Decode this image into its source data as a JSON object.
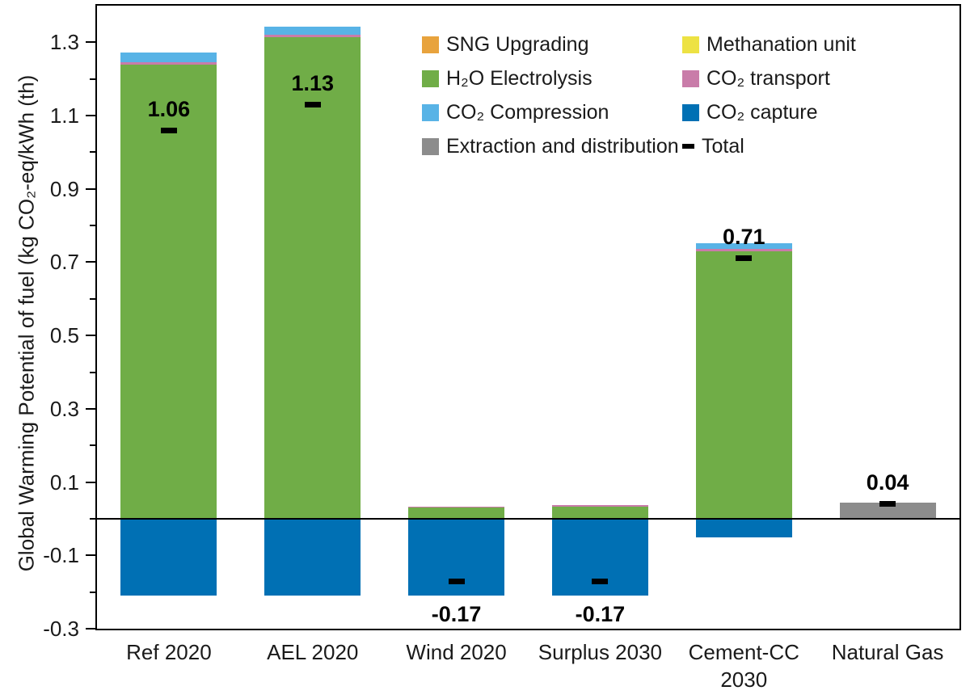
{
  "chart_data": {
    "type": "bar",
    "stacked": true,
    "title": "",
    "xlabel": "",
    "ylabel": "Global Warming Potential of fuel (kg CO₂-eq/kWh (th)",
    "ylim": [
      -0.3,
      1.4
    ],
    "grid": false,
    "axis_color": "#000000",
    "yticks_major": [
      "1.3",
      "1.1",
      "0.9",
      "0.7",
      "0.5",
      "0.3",
      "0.1",
      "-0.1",
      "-0.3"
    ],
    "yticks_minor": [
      1.2,
      1.0,
      0.8,
      0.6,
      0.4,
      0.2,
      0.0,
      -0.2
    ],
    "categories": [
      "Ref 2020",
      "AEL 2020",
      "Wind 2020",
      "Surplus 2030",
      "Cement-CC 2030",
      "Natural Gas"
    ],
    "xlabels_display": [
      "Ref 2020",
      "AEL 2020",
      "Wind 2020",
      "Surplus 2030",
      "Cement-CC\n2030",
      "Natural Gas"
    ],
    "series": [
      {
        "name": "Extraction and distribution",
        "color": "#8C8C8C",
        "values": [
          0,
          0,
          0,
          0,
          0,
          0.044
        ]
      },
      {
        "name": "H₂O Electrolysis",
        "color": "#70AD47",
        "values": [
          1.24,
          1.315,
          0.03,
          0.033,
          0.73,
          0
        ]
      },
      {
        "name": "CO₂ transport",
        "color": "#C97CA9",
        "values": [
          0.006,
          0.006,
          0.004,
          0.004,
          0.006,
          0
        ]
      },
      {
        "name": "Methanation unit",
        "color": "#EDE243",
        "values": [
          0,
          0,
          0,
          0,
          0,
          0
        ]
      },
      {
        "name": "SNG Upgrading",
        "color": "#E8A33D",
        "values": [
          0,
          0,
          0,
          0,
          0,
          0
        ]
      },
      {
        "name": "CO₂  Compression",
        "color": "#58B3E6",
        "values": [
          0.027,
          0.022,
          0,
          0,
          0.016,
          0
        ]
      },
      {
        "name": "CO₂ capture",
        "color": "#0070B4",
        "values": [
          -0.21,
          -0.21,
          -0.21,
          -0.21,
          -0.05,
          0
        ]
      }
    ],
    "totals": {
      "name": "Total",
      "color": "#000000",
      "values": [
        1.06,
        1.13,
        -0.17,
        -0.17,
        0.71,
        0.04
      ],
      "labels": [
        "1.06",
        "1.13",
        "-0.17",
        "-0.17",
        "0.71",
        "0.04"
      ]
    },
    "legend": {
      "position": "top-center-inside",
      "columns": [
        [
          {
            "label": "SNG Upgrading",
            "color": "#E8A33D",
            "marker": "square"
          },
          {
            "label": "H₂O Electrolysis",
            "color": "#70AD47",
            "marker": "square"
          },
          {
            "label": "CO₂  Compression",
            "color": "#58B3E6",
            "marker": "square"
          },
          {
            "label": "Extraction and distribution",
            "color": "#8C8C8C",
            "marker": "square"
          }
        ],
        [
          {
            "label": "Methanation unit",
            "color": "#EDE243",
            "marker": "square"
          },
          {
            "label": "CO₂ transport",
            "color": "#C97CA9",
            "marker": "square"
          },
          {
            "label": "CO₂ capture",
            "color": "#0070B4",
            "marker": "square"
          },
          {
            "label": "Total",
            "color": "#000000",
            "marker": "dash"
          }
        ]
      ]
    }
  }
}
